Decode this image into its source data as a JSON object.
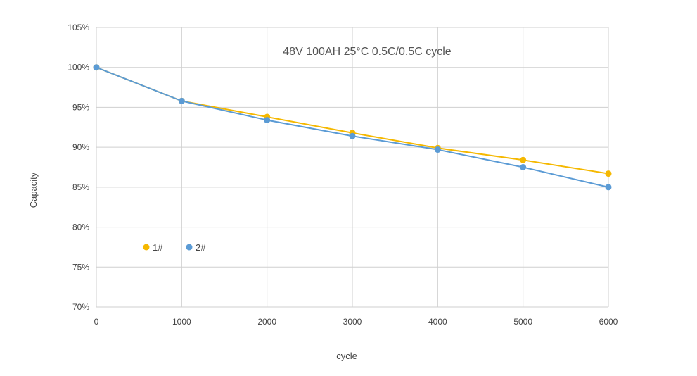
{
  "chart_data": {
    "type": "line",
    "title": "48V 100AH 25°C 0.5C/0.5C cycle",
    "xlabel": "cycle",
    "ylabel": "Capacity",
    "xlim": [
      0,
      6000
    ],
    "ylim": [
      70,
      105
    ],
    "xticks": [
      0,
      1000,
      2000,
      3000,
      4000,
      5000,
      6000
    ],
    "xtick_labels": [
      "0",
      "1000",
      "2000",
      "3000",
      "4000",
      "5000",
      "6000"
    ],
    "yticks": [
      70,
      75,
      80,
      85,
      90,
      95,
      100,
      105
    ],
    "ytick_labels": [
      "70%",
      "75%",
      "80%",
      "85%",
      "90%",
      "95%",
      "100%",
      "105%"
    ],
    "grid": true,
    "legend_position": "lower-left",
    "x": [
      0,
      1000,
      2000,
      3000,
      4000,
      5000,
      6000
    ],
    "series": [
      {
        "name": "1#",
        "color": "#f5b800",
        "values": [
          100,
          95.8,
          93.8,
          91.8,
          89.9,
          88.4,
          86.7
        ]
      },
      {
        "name": "2#",
        "color": "#5b9bd5",
        "values": [
          100,
          95.8,
          93.4,
          91.4,
          89.7,
          87.5,
          85.0
        ]
      }
    ]
  }
}
